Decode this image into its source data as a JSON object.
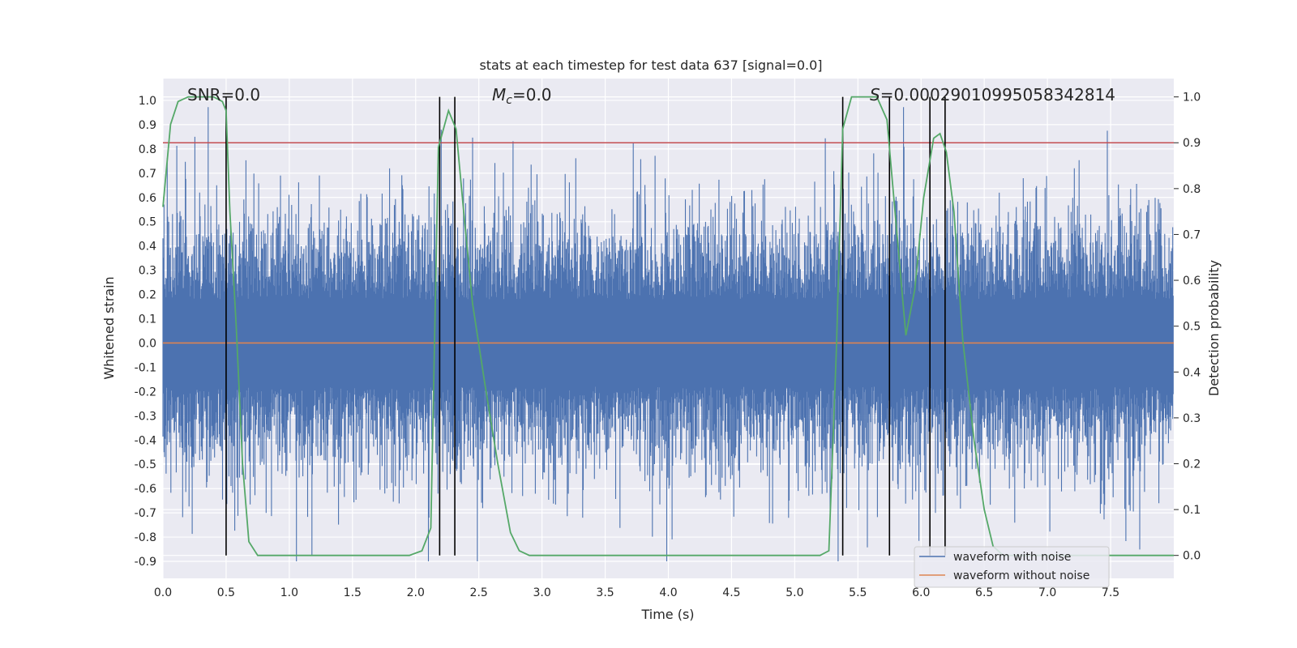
{
  "chart_data": {
    "type": "line",
    "title": "stats at each timestep for test data 637 [signal=0.0]",
    "xlabel": "Time (s)",
    "ylabel": "Whitened strain",
    "y2label": "Detection probability",
    "xlim": [
      0.0,
      8.0
    ],
    "ylim": [
      -0.97,
      1.09
    ],
    "y2lim": [
      -0.05,
      1.04
    ],
    "xticks": [
      "0.0",
      "0.5",
      "1.0",
      "1.5",
      "2.0",
      "2.5",
      "3.0",
      "3.5",
      "4.0",
      "4.5",
      "5.0",
      "5.5",
      "6.0",
      "6.5",
      "7.0",
      "7.5"
    ],
    "yticks": [
      "1.0",
      "0.9",
      "0.8",
      "0.7",
      "0.6",
      "0.5",
      "0.4",
      "0.3",
      "0.2",
      "0.1",
      "0.0",
      "-0.1",
      "-0.2",
      "-0.3",
      "-0.4",
      "-0.5",
      "-0.6",
      "-0.7",
      "-0.8",
      "-0.9"
    ],
    "y2ticks": [
      "1.0",
      "0.9",
      "0.8",
      "0.7",
      "0.6",
      "0.5",
      "0.4",
      "0.3",
      "0.2",
      "0.1",
      "0.0"
    ],
    "annotations": {
      "snr": "SNR=0.0",
      "mc_symbol": "M",
      "mc_sub": "c",
      "mc_value": "=0.0",
      "s_symbol": "S",
      "s_value": "=0.0002901099505834281​4"
    },
    "series": [
      {
        "name": "waveform with noise",
        "color": "#4c72b0",
        "axis": "left",
        "description": "dense noisy strain, envelope roughly -0.9 to 1.0",
        "noise_envelope": [
          -0.9,
          1.0
        ]
      },
      {
        "name": "waveform without noise",
        "color": "#dd8452",
        "axis": "left",
        "x": [
          0.0,
          8.0
        ],
        "y": [
          0.0,
          0.0
        ]
      },
      {
        "name": "detection probability",
        "color": "#55a868",
        "axis": "right",
        "x": [
          0.0,
          0.06,
          0.12,
          0.2,
          0.3,
          0.4,
          0.47,
          0.5,
          0.53,
          0.58,
          0.63,
          0.68,
          0.75,
          1.0,
          1.5,
          1.95,
          2.05,
          2.12,
          2.18,
          2.26,
          2.32,
          2.38,
          2.45,
          2.55,
          2.65,
          2.75,
          2.82,
          2.9,
          3.5,
          4.5,
          5.2,
          5.27,
          5.33,
          5.38,
          5.45,
          5.55,
          5.65,
          5.73,
          5.8,
          5.88,
          5.95,
          6.02,
          6.1,
          6.15,
          6.2,
          6.26,
          6.33,
          6.42,
          6.5,
          6.57,
          6.65,
          8.0
        ],
        "y": [
          0.76,
          0.94,
          0.99,
          1.0,
          1.0,
          1.0,
          0.99,
          0.97,
          0.75,
          0.5,
          0.2,
          0.03,
          0.0,
          0.0,
          0.0,
          0.0,
          0.01,
          0.06,
          0.89,
          0.97,
          0.93,
          0.75,
          0.55,
          0.37,
          0.2,
          0.05,
          0.01,
          0.0,
          0.0,
          0.0,
          0.0,
          0.01,
          0.45,
          0.93,
          1.0,
          1.0,
          1.0,
          0.95,
          0.73,
          0.48,
          0.58,
          0.78,
          0.91,
          0.92,
          0.88,
          0.75,
          0.47,
          0.25,
          0.1,
          0.02,
          0.0,
          0.0
        ]
      }
    ],
    "threshold": {
      "color": "#c44e52",
      "axis": "right",
      "value": 0.9
    },
    "boundaries": {
      "color": "#000000",
      "x": [
        0.5,
        2.19,
        2.31,
        5.38,
        5.75,
        6.07,
        6.19
      ]
    },
    "legend": {
      "placement": "lower-right",
      "entries": [
        {
          "label": "waveform with noise",
          "color": "#4c72b0"
        },
        {
          "label": "waveform without noise",
          "color": "#dd8452"
        }
      ]
    },
    "colors": {
      "plot_bg": "#eaeaf2",
      "grid": "#ffffff"
    }
  }
}
